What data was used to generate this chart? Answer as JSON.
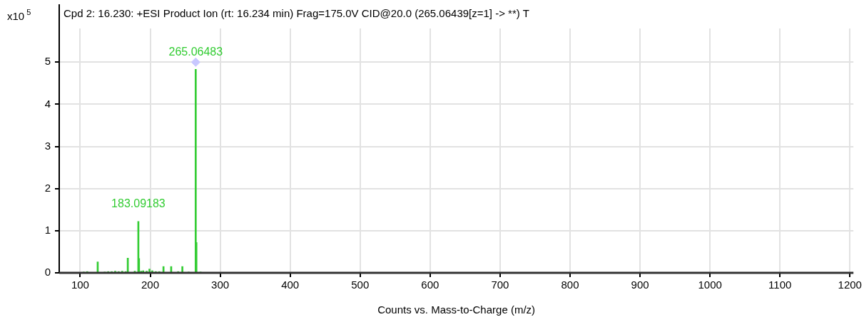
{
  "chart_data": {
    "type": "bar",
    "title": "Cpd 2: 16.230: +ESI Product Ion (rt: 16.234 min) Frag=175.0V CID@20.0 (265.06439[z=1] -> **) T",
    "xlabel": "Counts vs. Mass-to-Charge (m/z)",
    "ylabel": "x10$^{5}$",
    "series": [
      {
        "color": "#33cc33",
        "x": [
          105,
          110,
          125,
          135,
          140,
          145,
          150,
          155,
          160,
          165,
          168,
          178,
          183.09183,
          184,
          187,
          190,
          195,
          199,
          203,
          208,
          213,
          219,
          230,
          240,
          246,
          255,
          265.06483,
          266,
          272
        ],
        "values": [
          0.02,
          0.03,
          0.26,
          0.02,
          0.03,
          0.03,
          0.04,
          0.03,
          0.04,
          0.03,
          0.35,
          0.04,
          1.22,
          0.34,
          0.04,
          0.05,
          0.04,
          0.09,
          0.05,
          0.03,
          0.03,
          0.15,
          0.15,
          0.03,
          0.15,
          0.02,
          4.83,
          0.72,
          0.02
        ]
      },
      {
        "type": "scatter",
        "marker": "diamond",
        "color": "#c8c8ff",
        "x": [
          265.06439
        ],
        "values": [
          5
        ]
      }
    ],
    "xlim": [
      70,
      1205
    ],
    "xticks": [
      100,
      200,
      300,
      400,
      500,
      600,
      700,
      800,
      900,
      1000,
      1100,
      1200
    ],
    "ylim": [
      0,
      5.8
    ],
    "yticks": [
      0,
      1,
      2,
      3,
      4,
      5
    ],
    "grid": true,
    "legend": false,
    "annotations": [
      {
        "text": "265.06483",
        "x": 265.06483,
        "y": 4.83
      },
      {
        "text": "183.09183",
        "x": 183.09183,
        "y": 1.22
      }
    ]
  }
}
